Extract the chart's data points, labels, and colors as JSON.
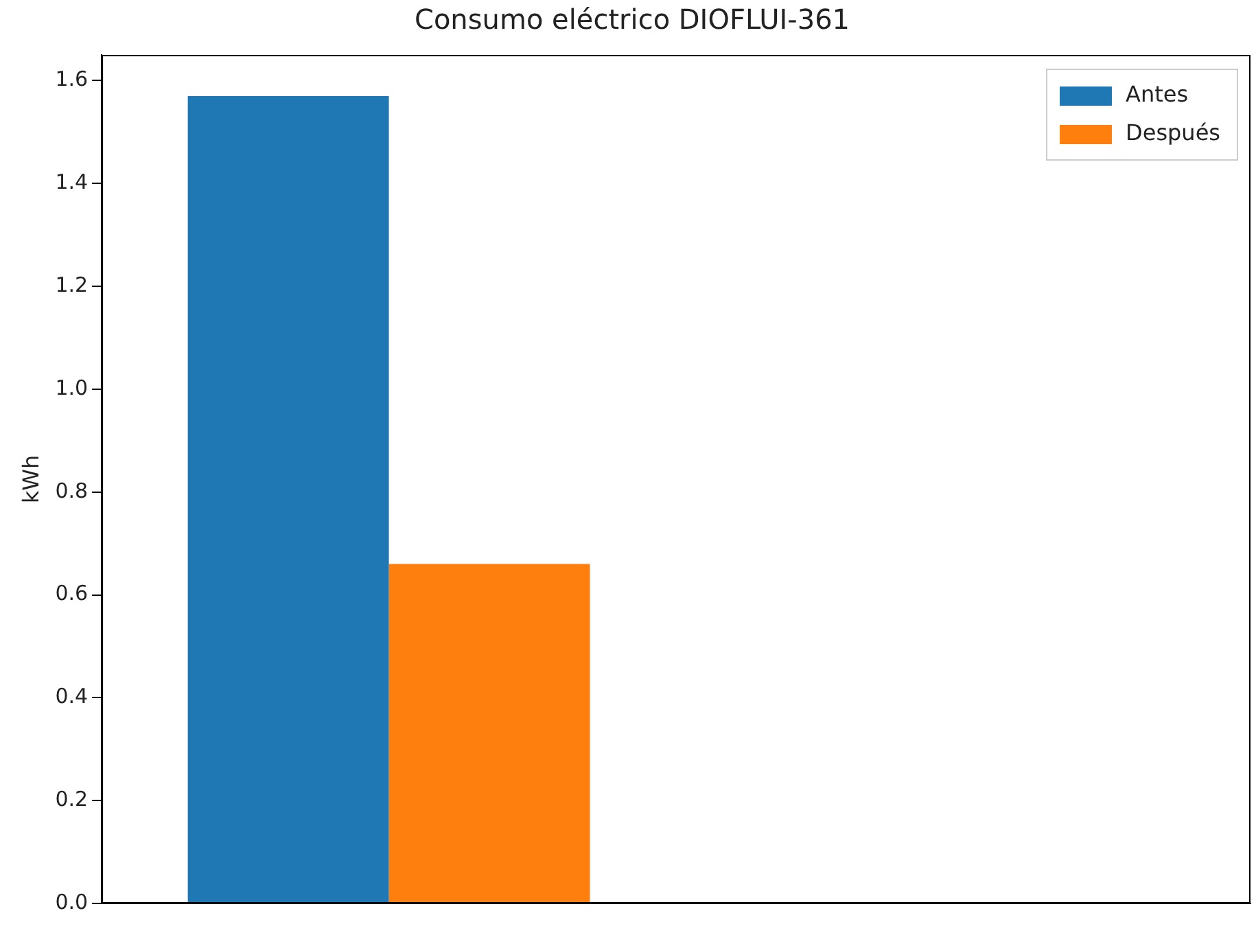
{
  "chart_data": {
    "type": "bar",
    "title": "Consumo eléctrico DIOFLUI-361",
    "ylabel": "kWh",
    "categories": [
      null,
      null
    ],
    "series": [
      {
        "name": "Antes",
        "color": "#1f77b4",
        "values": [
          1.57,
          null
        ]
      },
      {
        "name": "Después",
        "color": "#ff7f0e",
        "values": [
          0.66,
          null
        ]
      }
    ],
    "ylim": [
      0,
      1.65
    ],
    "yticks": [
      {
        "value": 0,
        "label": "0.0"
      },
      0.2,
      0.4,
      0.6,
      0.8,
      {
        "value": 1,
        "label": "1.0"
      },
      1.2,
      1.4,
      1.6
    ],
    "legend": "top right"
  }
}
